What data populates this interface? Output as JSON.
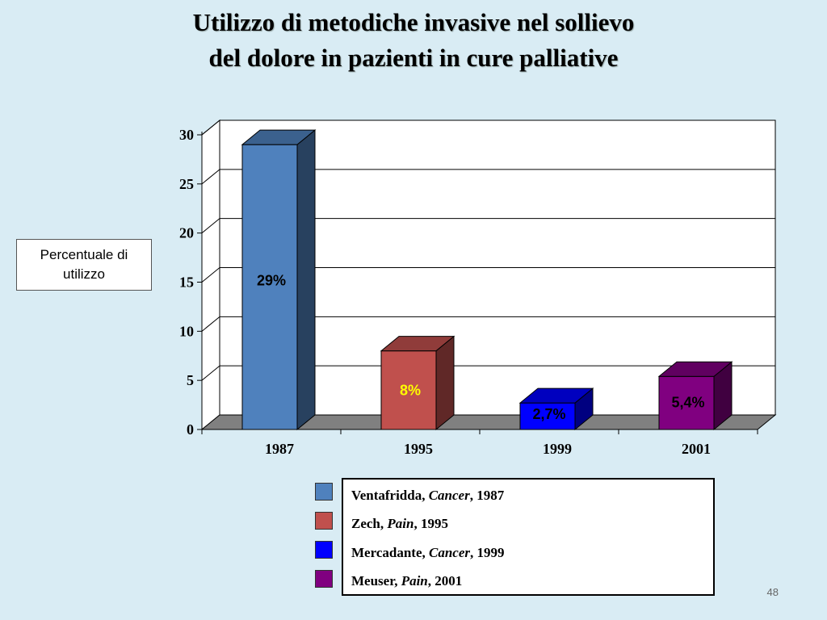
{
  "title": {
    "line1": "Utilizzo di metodiche invasive nel sollievo",
    "line2": "del dolore in pazienti in cure palliative"
  },
  "ylabel": "Percentuale di utilizzo",
  "page_number": "48",
  "chart_data": {
    "type": "bar",
    "categories": [
      "1987",
      "1995",
      "1999",
      "2001"
    ],
    "values": [
      29,
      8,
      2.7,
      5.4
    ],
    "data_labels": [
      "29%",
      "8%",
      "2,7%",
      "5,4%"
    ],
    "colors": [
      "#4f81bd",
      "#c0504d",
      "#0000ff",
      "#800080"
    ],
    "label_colors": [
      "#000000",
      "#ffff00",
      "#000000",
      "#000000"
    ],
    "yticks": [
      "0",
      "5",
      "10",
      "15",
      "20",
      "25",
      "30"
    ],
    "ylim": [
      0,
      30
    ],
    "grid": true,
    "legend_position": "bottom-right"
  },
  "legend": [
    {
      "author": "Ventafridda, ",
      "pub": "Cancer",
      "year": ", 1987",
      "color": "#4f81bd"
    },
    {
      "author": "Zech, ",
      "pub": "Pain",
      "year": ", 1995",
      "color": "#c0504d"
    },
    {
      "author": "Mercadante, ",
      "pub": "Cancer",
      "year": ", 1999",
      "color": "#0000ff"
    },
    {
      "author": "Meuser, ",
      "pub": "Pain",
      "year": ", 2001",
      "color": "#800080"
    }
  ]
}
